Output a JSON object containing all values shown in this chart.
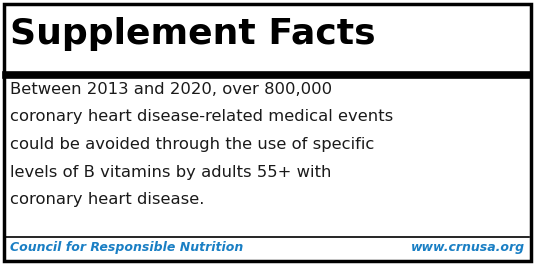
{
  "title": "Supplement Facts",
  "body_lines": [
    "Between 2013 and 2020, over 800,000",
    "coronary heart disease-related medical events",
    "could be avoided through the use of specific",
    "levels of B vitamins by adults 55+ with",
    "coronary heart disease."
  ],
  "footer_left": "Council for Responsible Nutrition",
  "footer_right": "www.crnusa.org",
  "border_color": "#000000",
  "background_color": "#ffffff",
  "title_color": "#000000",
  "body_color": "#1a1a1a",
  "footer_color": "#1a7fc4",
  "title_fontsize": 26,
  "body_fontsize": 11.8,
  "footer_fontsize": 9.0
}
